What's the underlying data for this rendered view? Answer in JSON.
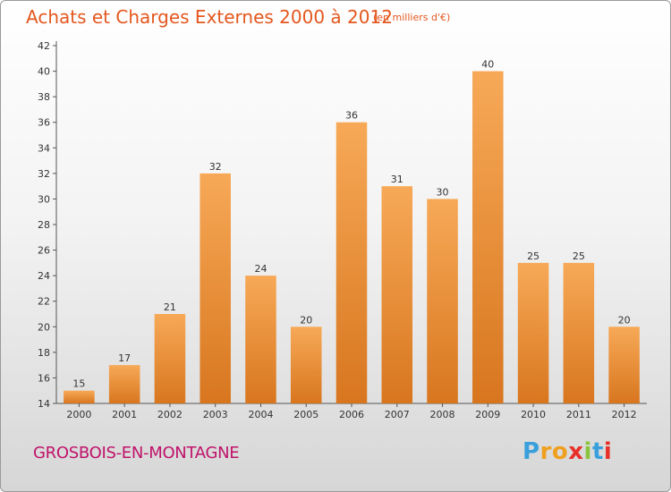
{
  "title": "Achats et Charges Externes 2000 à 2012",
  "subtitle": "(en milliers d'€)",
  "commune": "GROSBOIS-EN-MONTAGNE",
  "brand": {
    "letters": [
      "P",
      "r",
      "o",
      "x",
      "i",
      "t",
      "i"
    ],
    "colors": [
      "#3aa0dc",
      "#f0a020",
      "#f0a020",
      "#e8302a",
      "#8ac43f",
      "#3aa0dc",
      "#e8302a"
    ]
  },
  "colors": {
    "bar_light": "#f7a957",
    "bar_dark": "#d8761f",
    "accent": "#e4571e",
    "commune": "#c0126a"
  },
  "chart_data": {
    "type": "bar",
    "categories": [
      "2000",
      "2001",
      "2002",
      "2003",
      "2004",
      "2005",
      "2006",
      "2007",
      "2008",
      "2009",
      "2010",
      "2011",
      "2012"
    ],
    "values": [
      15,
      17,
      21,
      32,
      24,
      20,
      36,
      31,
      30,
      40,
      25,
      25,
      20
    ],
    "title": "Achats et Charges Externes 2000 à 2012",
    "xlabel": "",
    "ylabel": "",
    "ylim": [
      14,
      42
    ],
    "yticks": [
      14,
      16,
      18,
      20,
      22,
      24,
      26,
      28,
      30,
      32,
      34,
      36,
      38,
      40,
      42
    ],
    "grid": false,
    "data_labels": true
  }
}
